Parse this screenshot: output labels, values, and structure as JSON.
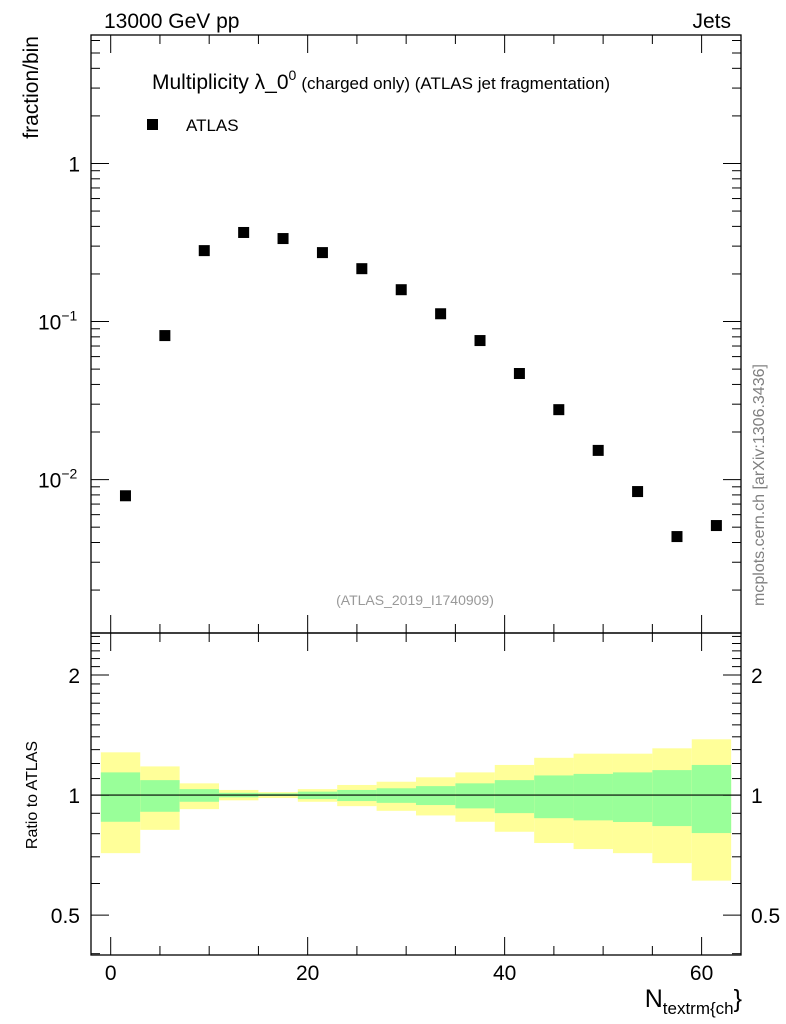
{
  "header": {
    "left": "13000 GeV pp",
    "right": "Jets"
  },
  "side_label": "mcplots.cern.ch [arXiv:1306.3436]",
  "analysis_id": "(ATLAS_2019_I1740909)",
  "colors": {
    "data": "#000000",
    "band_outer": "#ffff99",
    "band_inner": "#99ff99",
    "ref_line": "#000000",
    "analysis_text": "#999999"
  },
  "chart_data": [
    {
      "type": "scatter",
      "title_main": "Multiplicity λ_0",
      "title_sup": "0",
      "title_rest": "(charged only) (ATLAS jet fragmentation)",
      "ylabel": "fraction/bin",
      "xlabel_main": "N",
      "xlabel_sub": "textrm{ch",
      "xlabel_tail": "}",
      "yscale": "log",
      "xlim": [
        -2,
        64
      ],
      "ylim": [
        0.00107,
        6.5
      ],
      "yticks": [
        {
          "v": 1,
          "base": "1",
          "exp": ""
        },
        {
          "v": 0.1,
          "base": "10",
          "exp": "−1"
        },
        {
          "v": 0.01,
          "base": "10",
          "exp": "−2"
        }
      ],
      "legend": {
        "label": "ATLAS",
        "position": "top-left"
      },
      "series": [
        {
          "name": "ATLAS",
          "x": [
            1.5,
            5.5,
            9.5,
            13.5,
            17.5,
            21.5,
            25.5,
            29.5,
            33.5,
            37.5,
            41.5,
            45.5,
            49.5,
            53.5,
            57.5,
            61.5
          ],
          "y": [
            0.0079,
            0.0815,
            0.281,
            0.366,
            0.335,
            0.273,
            0.216,
            0.159,
            0.112,
            0.0758,
            0.0469,
            0.0277,
            0.0153,
            0.0084,
            0.00436,
            0.00512
          ]
        }
      ]
    },
    {
      "type": "area",
      "ylabel": "Ratio to ATLAS",
      "yscale": "log",
      "xlim": [
        -2,
        64
      ],
      "ylim": [
        0.397,
        2.55
      ],
      "xticks": [
        "0",
        "20",
        "40",
        "60"
      ],
      "xtick_values": [
        0,
        20,
        40,
        60
      ],
      "yticks": [
        "0.5",
        "1",
        "2"
      ],
      "ytick_values": [
        0.5,
        1,
        2
      ],
      "bin_edges": [
        -1,
        3,
        7,
        11,
        15,
        19,
        23,
        27,
        31,
        35,
        39,
        43,
        47,
        51,
        55,
        59,
        63
      ],
      "outer_band": {
        "upper": [
          1.28,
          1.18,
          1.07,
          1.03,
          1.017,
          1.035,
          1.06,
          1.08,
          1.108,
          1.14,
          1.19,
          1.24,
          1.27,
          1.27,
          1.31,
          1.38
        ],
        "lower": [
          0.715,
          0.818,
          0.922,
          0.97,
          0.983,
          0.962,
          0.938,
          0.913,
          0.889,
          0.857,
          0.809,
          0.758,
          0.732,
          0.715,
          0.675,
          0.61
        ]
      },
      "inner_band": {
        "upper": [
          1.14,
          1.09,
          1.035,
          1.013,
          1.01,
          1.02,
          1.03,
          1.04,
          1.053,
          1.07,
          1.09,
          1.12,
          1.13,
          1.14,
          1.155,
          1.19
        ],
        "lower": [
          0.857,
          0.908,
          0.962,
          0.987,
          0.995,
          0.977,
          0.966,
          0.956,
          0.944,
          0.926,
          0.901,
          0.875,
          0.864,
          0.856,
          0.836,
          0.803
        ]
      },
      "reference": 1
    }
  ]
}
